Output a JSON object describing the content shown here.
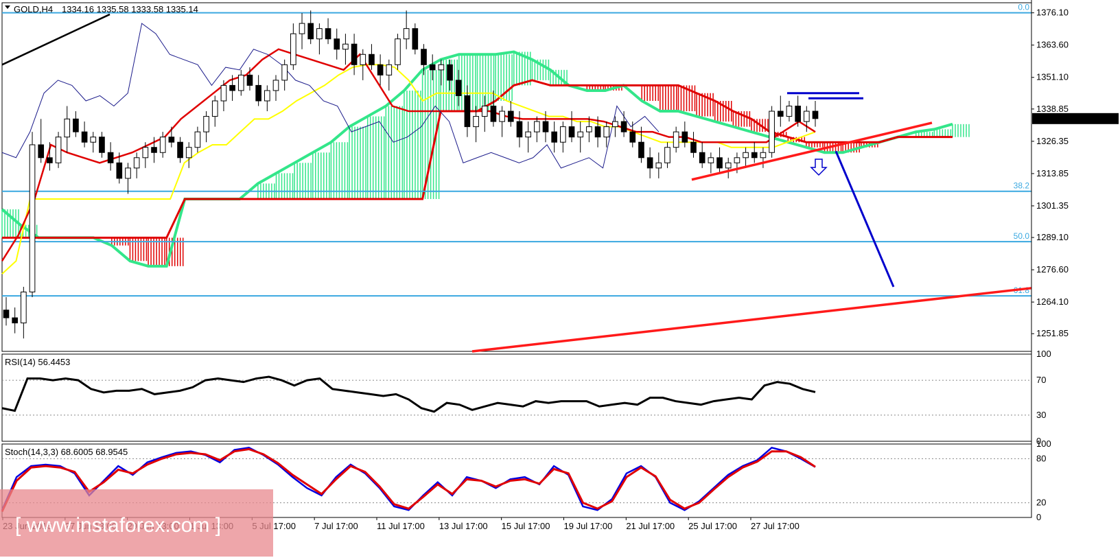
{
  "header": {
    "symbol_label": "GOLD,H4",
    "ohlc_text": "1334.16 1335.58 1333.58 1335.14"
  },
  "current_price_label": "1335.14",
  "watermark_text": "[ www.instaforex.com ]",
  "colors": {
    "fib": "#3aa8e0",
    "kijun": "#e00000",
    "tenkan": "#ffff00",
    "chikou": "#1a1a8a",
    "cloud_bull": "#33e68a",
    "cloud_bear": "#e00000",
    "rsi": "#000000",
    "stoch_main": "#0000e0",
    "stoch_signal": "#e00000",
    "trend_red": "#ff1a1a",
    "projection": "#0000cc",
    "watermark": "#e8888e"
  },
  "chart_data": [
    {
      "type": "candlestick",
      "title": "GOLD,H4",
      "ylim": [
        1245,
        1380
      ],
      "y_ticks": [
        "1376.10",
        "1363.60",
        "1351.10",
        "1338.85",
        "1326.35",
        "1313.85",
        "1301.35",
        "1289.10",
        "1276.60",
        "1264.10",
        "1251.85"
      ],
      "x_ticks": [
        "23 Jun 2016",
        "27 Jun 13:00",
        "29 Jun 13:00",
        "1 Jul 13:00",
        "5 Jul 17:00",
        "7 Jul 17:00",
        "11 Jul 17:00",
        "13 Jul 17:00",
        "15 Jul 17:00",
        "19 Jul 17:00",
        "21 Jul 17:00",
        "25 Jul 17:00",
        "27 Jul 17:00"
      ],
      "fib_levels": [
        {
          "label": "0.0",
          "price": 1376.1
        },
        {
          "label": "38.2",
          "price": 1307.0
        },
        {
          "label": "50.0",
          "price": 1287.5
        },
        {
          "label": "61.8",
          "price": 1266.5
        }
      ],
      "candles": [
        [
          1261,
          1266,
          1255,
          1258
        ],
        [
          1258,
          1262,
          1252,
          1256
        ],
        [
          1256,
          1270,
          1250,
          1268
        ],
        [
          1268,
          1330,
          1266,
          1325
        ],
        [
          1325,
          1335,
          1318,
          1320
        ],
        [
          1320,
          1326,
          1315,
          1318
        ],
        [
          1318,
          1330,
          1316,
          1328
        ],
        [
          1328,
          1340,
          1322,
          1335
        ],
        [
          1335,
          1338,
          1328,
          1330
        ],
        [
          1330,
          1334,
          1324,
          1326
        ],
        [
          1326,
          1330,
          1322,
          1328
        ],
        [
          1328,
          1330,
          1320,
          1322
        ],
        [
          1322,
          1326,
          1315,
          1318
        ],
        [
          1318,
          1322,
          1310,
          1312
        ],
        [
          1312,
          1318,
          1306,
          1316
        ],
        [
          1316,
          1322,
          1312,
          1320
        ],
        [
          1320,
          1326,
          1316,
          1324
        ],
        [
          1324,
          1328,
          1318,
          1322
        ],
        [
          1322,
          1330,
          1320,
          1328
        ],
        [
          1328,
          1332,
          1324,
          1326
        ],
        [
          1326,
          1328,
          1318,
          1320
        ],
        [
          1320,
          1326,
          1316,
          1324
        ],
        [
          1324,
          1332,
          1322,
          1330
        ],
        [
          1330,
          1338,
          1326,
          1336
        ],
        [
          1336,
          1344,
          1332,
          1342
        ],
        [
          1342,
          1350,
          1338,
          1348
        ],
        [
          1348,
          1352,
          1342,
          1346
        ],
        [
          1346,
          1354,
          1344,
          1352
        ],
        [
          1352,
          1355,
          1346,
          1348
        ],
        [
          1348,
          1352,
          1340,
          1342
        ],
        [
          1342,
          1348,
          1338,
          1346
        ],
        [
          1346,
          1352,
          1342,
          1350
        ],
        [
          1350,
          1358,
          1346,
          1356
        ],
        [
          1356,
          1372,
          1354,
          1368
        ],
        [
          1368,
          1376,
          1362,
          1372
        ],
        [
          1372,
          1377,
          1364,
          1366
        ],
        [
          1366,
          1372,
          1360,
          1370
        ],
        [
          1370,
          1374,
          1364,
          1366
        ],
        [
          1366,
          1370,
          1358,
          1362
        ],
        [
          1362,
          1368,
          1356,
          1364
        ],
        [
          1364,
          1368,
          1352,
          1356
        ],
        [
          1356,
          1362,
          1350,
          1360
        ],
        [
          1360,
          1364,
          1354,
          1356
        ],
        [
          1356,
          1360,
          1348,
          1352
        ],
        [
          1352,
          1358,
          1346,
          1356
        ],
        [
          1356,
          1368,
          1354,
          1366
        ],
        [
          1366,
          1377,
          1362,
          1370
        ],
        [
          1370,
          1372,
          1360,
          1362
        ],
        [
          1362,
          1364,
          1352,
          1356
        ],
        [
          1356,
          1360,
          1350,
          1354
        ],
        [
          1354,
          1358,
          1348,
          1356
        ],
        [
          1356,
          1358,
          1346,
          1350
        ],
        [
          1350,
          1354,
          1340,
          1344
        ],
        [
          1344,
          1348,
          1328,
          1332
        ],
        [
          1332,
          1340,
          1326,
          1336
        ],
        [
          1336,
          1344,
          1330,
          1340
        ],
        [
          1340,
          1346,
          1332,
          1334
        ],
        [
          1334,
          1340,
          1328,
          1338
        ],
        [
          1338,
          1342,
          1332,
          1334
        ],
        [
          1334,
          1338,
          1324,
          1328
        ],
        [
          1328,
          1334,
          1322,
          1330
        ],
        [
          1330,
          1336,
          1326,
          1334
        ],
        [
          1334,
          1338,
          1326,
          1330
        ],
        [
          1330,
          1334,
          1322,
          1326
        ],
        [
          1326,
          1334,
          1322,
          1332
        ],
        [
          1332,
          1338,
          1326,
          1328
        ],
        [
          1328,
          1334,
          1322,
          1330
        ],
        [
          1330,
          1336,
          1326,
          1332
        ],
        [
          1332,
          1336,
          1324,
          1328
        ],
        [
          1328,
          1334,
          1324,
          1332
        ],
        [
          1332,
          1336,
          1328,
          1334
        ],
        [
          1334,
          1338,
          1328,
          1330
        ],
        [
          1330,
          1334,
          1324,
          1326
        ],
        [
          1326,
          1332,
          1318,
          1320
        ],
        [
          1320,
          1324,
          1312,
          1316
        ],
        [
          1316,
          1322,
          1312,
          1318
        ],
        [
          1318,
          1326,
          1316,
          1324
        ],
        [
          1324,
          1332,
          1322,
          1330
        ],
        [
          1330,
          1334,
          1324,
          1326
        ],
        [
          1326,
          1330,
          1320,
          1322
        ],
        [
          1322,
          1326,
          1316,
          1318
        ],
        [
          1318,
          1322,
          1314,
          1320
        ],
        [
          1320,
          1324,
          1314,
          1316
        ],
        [
          1316,
          1320,
          1312,
          1318
        ],
        [
          1318,
          1322,
          1314,
          1320
        ],
        [
          1320,
          1324,
          1316,
          1322
        ],
        [
          1322,
          1326,
          1318,
          1320
        ],
        [
          1320,
          1324,
          1316,
          1322
        ],
        [
          1322,
          1340,
          1320,
          1338
        ],
        [
          1338,
          1344,
          1332,
          1336
        ],
        [
          1336,
          1342,
          1334,
          1340
        ],
        [
          1340,
          1344,
          1332,
          1334
        ],
        [
          1334,
          1340,
          1330,
          1338
        ],
        [
          1338,
          1342,
          1332,
          1335.14
        ]
      ],
      "tenkan": [
        1275,
        1280,
        1304,
        1304,
        1304,
        1304,
        1304,
        1304,
        1304,
        1304,
        1304,
        1304,
        1304,
        1318,
        1322,
        1325,
        1325,
        1330,
        1335,
        1335,
        1338,
        1342,
        1345,
        1348,
        1352,
        1355,
        1356,
        1356,
        1355,
        1350,
        1342,
        1345,
        1345,
        1345,
        1345,
        1345,
        1342,
        1340,
        1338,
        1336,
        1336,
        1334,
        1334,
        1332,
        1332,
        1330,
        1328,
        1326,
        1326,
        1326,
        1326,
        1326,
        1324,
        1324,
        1324,
        1324,
        1326,
        1328,
        1330
      ],
      "kijun": [
        1280,
        1290,
        1304,
        1325,
        1322,
        1320,
        1318,
        1320,
        1322,
        1325,
        1328,
        1335,
        1340,
        1345,
        1350,
        1352,
        1358,
        1362,
        1360,
        1358,
        1356,
        1354,
        1360,
        1350,
        1340,
        1338,
        1338,
        1338,
        1338,
        1338,
        1338,
        1336,
        1335,
        1335,
        1335,
        1335,
        1335,
        1334,
        1332,
        1330,
        1330,
        1328,
        1328,
        1326,
        1326,
        1326,
        1326,
        1326,
        1330,
        1334,
        1330
      ],
      "senkou_a": [
        1300,
        1294,
        1289,
        1289,
        1289,
        1289,
        1286,
        1280,
        1278,
        1278,
        1304,
        1304,
        1304,
        1304,
        1310,
        1314,
        1318,
        1322,
        1326,
        1332,
        1336,
        1340,
        1346,
        1354,
        1358,
        1360,
        1360,
        1360,
        1361,
        1358,
        1354,
        1348,
        1346,
        1346,
        1348,
        1342,
        1338,
        1338,
        1336,
        1334,
        1332,
        1330,
        1328,
        1326,
        1324,
        1322,
        1322,
        1324,
        1326,
        1328,
        1330,
        1331,
        1333
      ],
      "senkou_b": [
        1289,
        1289,
        1289,
        1289,
        1289,
        1289,
        1289,
        1289,
        1289,
        1289,
        1304,
        1304,
        1304,
        1304,
        1304,
        1304,
        1304,
        1304,
        1304,
        1304,
        1304,
        1304,
        1304,
        1304,
        1338,
        1338,
        1338,
        1342,
        1348,
        1350,
        1348,
        1348,
        1348,
        1348,
        1348,
        1348,
        1348,
        1348,
        1345,
        1342,
        1338,
        1335,
        1330,
        1328,
        1326,
        1326,
        1326,
        1326,
        1326,
        1328,
        1328,
        1328,
        1328
      ],
      "chikou": [
        1322,
        1320,
        1330,
        1345,
        1350,
        1348,
        1342,
        1344,
        1340,
        1345,
        1372,
        1368,
        1360,
        1358,
        1356,
        1348,
        1355,
        1354,
        1362,
        1360,
        1356,
        1350,
        1348,
        1342,
        1340,
        1330,
        1332,
        1334,
        1326,
        1328,
        1332,
        1340,
        1334,
        1318,
        1320,
        1322,
        1320,
        1318,
        1320,
        1325,
        1316,
        1318,
        1320,
        1316,
        1340,
        1332,
        1336,
        1330
      ]
    },
    {
      "type": "line",
      "title": "RSI(14) 56.4453",
      "ylim": [
        0,
        100
      ],
      "y_ticks": [
        "100",
        "70",
        "30",
        "0"
      ],
      "series": [
        {
          "name": "RSI(14)",
          "values": [
            38,
            35,
            72,
            72,
            70,
            72,
            70,
            60,
            56,
            58,
            58,
            60,
            54,
            56,
            58,
            62,
            70,
            72,
            70,
            68,
            72,
            74,
            70,
            64,
            70,
            72,
            60,
            58,
            56,
            54,
            52,
            54,
            48,
            38,
            34,
            44,
            42,
            36,
            40,
            44,
            42,
            40,
            46,
            44,
            46,
            46,
            46,
            40,
            42,
            44,
            42,
            50,
            50,
            46,
            44,
            42,
            46,
            48,
            50,
            48,
            64,
            68,
            66,
            60,
            56.4453
          ]
        }
      ]
    },
    {
      "type": "line",
      "title": "Stoch(14,3,3) 68.6005 68.9545",
      "ylim": [
        0,
        100
      ],
      "y_ticks": [
        "100",
        "80",
        "20",
        "0"
      ],
      "series": [
        {
          "name": "Stoch main",
          "values": [
            10,
            55,
            70,
            72,
            70,
            60,
            30,
            50,
            70,
            58,
            75,
            82,
            88,
            90,
            85,
            75,
            92,
            95,
            85,
            72,
            55,
            40,
            30,
            55,
            72,
            60,
            40,
            15,
            10,
            30,
            48,
            30,
            55,
            50,
            40,
            52,
            55,
            45,
            70,
            58,
            15,
            10,
            25,
            60,
            70,
            55,
            20,
            10,
            22,
            40,
            58,
            70,
            78,
            95,
            90,
            80,
            68.6005
          ]
        },
        {
          "name": "Stoch signal",
          "values": [
            8,
            50,
            68,
            70,
            68,
            62,
            35,
            48,
            65,
            60,
            72,
            80,
            86,
            88,
            86,
            78,
            90,
            93,
            86,
            74,
            58,
            45,
            32,
            52,
            70,
            62,
            42,
            18,
            12,
            28,
            45,
            32,
            52,
            50,
            42,
            50,
            52,
            46,
            66,
            60,
            20,
            12,
            22,
            55,
            68,
            56,
            24,
            12,
            20,
            38,
            55,
            68,
            76,
            90,
            90,
            82,
            68.9545
          ]
        }
      ]
    }
  ]
}
